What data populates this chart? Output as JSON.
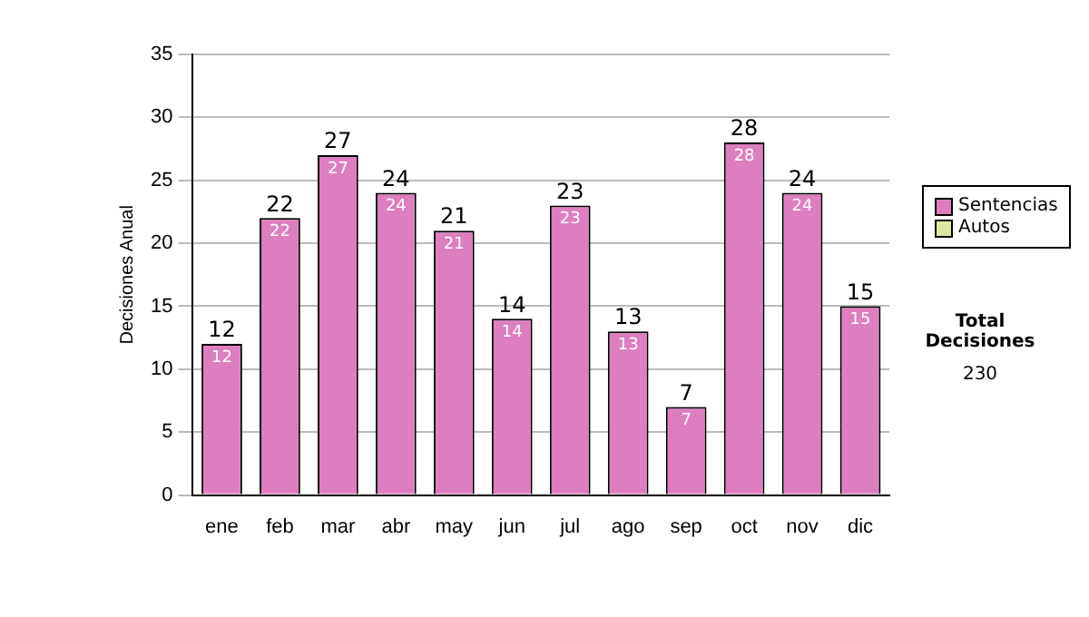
{
  "chart_data": {
    "type": "bar",
    "ylabel": "Decisiones Anual",
    "categories": [
      "ene",
      "feb",
      "mar",
      "abr",
      "may",
      "jun",
      "jul",
      "ago",
      "sep",
      "oct",
      "nov",
      "dic"
    ],
    "stacked": true,
    "series": [
      {
        "name": "Sentencias",
        "color": "#dd7fbf",
        "values": [
          12,
          22,
          27,
          24,
          21,
          14,
          23,
          13,
          7,
          28,
          24,
          15
        ],
        "value_labels": [
          "12",
          "22",
          "27",
          "24",
          "21",
          "14",
          "23",
          "13",
          "7",
          "28",
          "24",
          "15"
        ]
      },
      {
        "name": "Autos",
        "color": "#d9eaa0",
        "values": [
          0,
          0,
          0,
          0,
          0,
          0,
          0,
          0,
          0,
          0,
          0,
          0
        ]
      }
    ],
    "totals": [
      "12",
      "22",
      "27",
      "24",
      "21",
      "14",
      "23",
      "13",
      "7",
      "28",
      "24",
      "15"
    ],
    "ylim": [
      0,
      35
    ],
    "yticks": [
      0,
      5,
      10,
      15,
      20,
      25,
      30,
      35
    ],
    "grid": "y",
    "legend": "right",
    "annotations": [
      "Total Decisiones",
      "230"
    ]
  }
}
